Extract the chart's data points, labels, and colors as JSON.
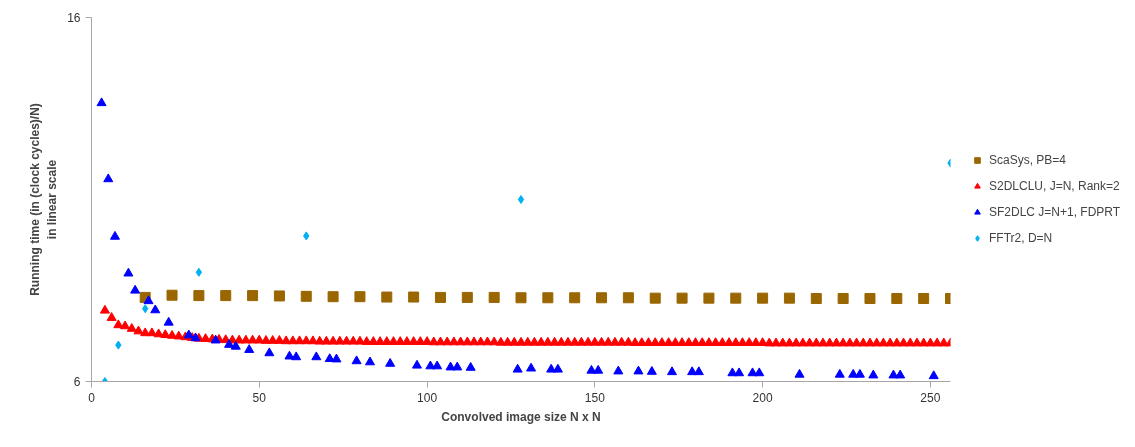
{
  "chart_data": {
    "type": "scatter",
    "xlabel": "Convolved image size N x N",
    "ylabel": "Running time (in (clock cycles)/N)\nin linear scale",
    "xlim": [
      0,
      256
    ],
    "ylim": [
      6,
      16
    ],
    "xticks": [
      0,
      50,
      100,
      150,
      200,
      250
    ],
    "yticks": [
      6,
      16
    ],
    "grid": false,
    "legend": "right",
    "series": [
      {
        "name": "ScaSys, PB=4",
        "color": "#996600",
        "marker": "square",
        "x": [
          16,
          24,
          32,
          40,
          48,
          56,
          64,
          72,
          80,
          88,
          96,
          104,
          112,
          120,
          128,
          136,
          144,
          152,
          160,
          168,
          176,
          184,
          192,
          200,
          208,
          216,
          224,
          232,
          240,
          248,
          256
        ],
        "values": [
          8.31,
          8.37,
          8.36,
          8.36,
          8.36,
          8.35,
          8.34,
          8.33,
          8.33,
          8.32,
          8.32,
          8.31,
          8.31,
          8.31,
          8.3,
          8.3,
          8.3,
          8.3,
          8.3,
          8.29,
          8.29,
          8.29,
          8.29,
          8.29,
          8.29,
          8.28,
          8.28,
          8.28,
          8.28,
          8.28,
          8.28
        ]
      },
      {
        "name": "S2DLCLU, J=N, Rank=2",
        "color": "#ff0000",
        "marker": "triangle",
        "x": [
          4,
          6,
          8,
          10,
          12,
          14,
          16,
          18,
          20,
          22,
          24,
          26,
          28,
          30,
          32,
          34,
          36,
          38,
          40,
          42,
          44,
          46,
          48,
          50,
          52,
          54,
          56,
          58,
          60,
          62,
          64,
          66,
          68,
          70,
          72,
          74,
          76,
          78,
          80,
          82,
          84,
          86,
          88,
          90,
          92,
          94,
          96,
          98,
          100,
          102,
          104,
          106,
          108,
          110,
          112,
          114,
          116,
          118,
          120,
          122,
          124,
          126,
          128,
          130,
          132,
          134,
          136,
          138,
          140,
          142,
          144,
          146,
          148,
          150,
          152,
          154,
          156,
          158,
          160,
          162,
          164,
          166,
          168,
          170,
          172,
          174,
          176,
          178,
          180,
          182,
          184,
          186,
          188,
          190,
          192,
          194,
          196,
          198,
          200,
          202,
          204,
          206,
          208,
          210,
          212,
          214,
          216,
          218,
          220,
          222,
          224,
          226,
          228,
          230,
          232,
          234,
          236,
          238,
          240,
          242,
          244,
          246,
          248,
          250,
          252,
          254,
          256
        ],
        "values": [
          7.95,
          7.75,
          7.55,
          7.52,
          7.45,
          7.38,
          7.33,
          7.33,
          7.3,
          7.28,
          7.26,
          7.24,
          7.22,
          7.2,
          7.18,
          7.17,
          7.16,
          7.15,
          7.14,
          7.13,
          7.13,
          7.13,
          7.13,
          7.13,
          7.12,
          7.12,
          7.12,
          7.11,
          7.11,
          7.11,
          7.11,
          7.11,
          7.1,
          7.1,
          7.1,
          7.1,
          7.1,
          7.1,
          7.1,
          7.09,
          7.09,
          7.09,
          7.09,
          7.09,
          7.09,
          7.09,
          7.09,
          7.09,
          7.09,
          7.08,
          7.08,
          7.08,
          7.08,
          7.08,
          7.08,
          7.08,
          7.08,
          7.08,
          7.08,
          7.07,
          7.07,
          7.07,
          7.07,
          7.07,
          7.07,
          7.07,
          7.07,
          7.07,
          7.07,
          7.07,
          7.07,
          7.07,
          7.07,
          7.07,
          7.07,
          7.07,
          7.07,
          7.07,
          7.07,
          7.06,
          7.06,
          7.06,
          7.06,
          7.06,
          7.06,
          7.06,
          7.06,
          7.06,
          7.06,
          7.06,
          7.06,
          7.06,
          7.06,
          7.06,
          7.06,
          7.06,
          7.06,
          7.06,
          7.06,
          7.05,
          7.05,
          7.05,
          7.05,
          7.05,
          7.05,
          7.05,
          7.05,
          7.05,
          7.05,
          7.05,
          7.05,
          7.05,
          7.05,
          7.05,
          7.05,
          7.05,
          7.05,
          7.05,
          7.05,
          7.05,
          7.05,
          7.05,
          7.05,
          7.05,
          7.05,
          7.05,
          7.05
        ]
      },
      {
        "name": "SF2DLC J=N+1, FDPRT",
        "color": "#0000ff",
        "marker": "triangle",
        "x": [
          3,
          5,
          7,
          11,
          13,
          17,
          19,
          23,
          29,
          31,
          37,
          41,
          43,
          47,
          53,
          59,
          61,
          67,
          71,
          73,
          79,
          83,
          89,
          97,
          101,
          103,
          107,
          109,
          113,
          127,
          131,
          137,
          139,
          149,
          151,
          157,
          163,
          167,
          173,
          179,
          181,
          191,
          193,
          197,
          199,
          211,
          223,
          227,
          229,
          233,
          239,
          241,
          251
        ],
        "values": [
          13.65,
          11.56,
          9.98,
          8.97,
          8.5,
          8.21,
          7.96,
          7.62,
          7.27,
          7.19,
          7.13,
          7.01,
          6.96,
          6.87,
          6.78,
          6.69,
          6.67,
          6.67,
          6.62,
          6.61,
          6.56,
          6.53,
          6.49,
          6.44,
          6.42,
          6.42,
          6.39,
          6.39,
          6.38,
          6.33,
          6.36,
          6.33,
          6.33,
          6.3,
          6.3,
          6.28,
          6.28,
          6.27,
          6.26,
          6.26,
          6.26,
          6.23,
          6.23,
          6.23,
          6.23,
          6.19,
          6.19,
          6.19,
          6.19,
          6.17,
          6.17,
          6.17,
          6.15
        ]
      },
      {
        "name": "FFTr2, D=N",
        "color": "#00b0f0",
        "marker": "diamond",
        "x": [
          4,
          8,
          16,
          32,
          64,
          128,
          256
        ],
        "values": [
          6,
          7,
          8,
          9,
          10,
          11,
          12
        ]
      }
    ]
  }
}
